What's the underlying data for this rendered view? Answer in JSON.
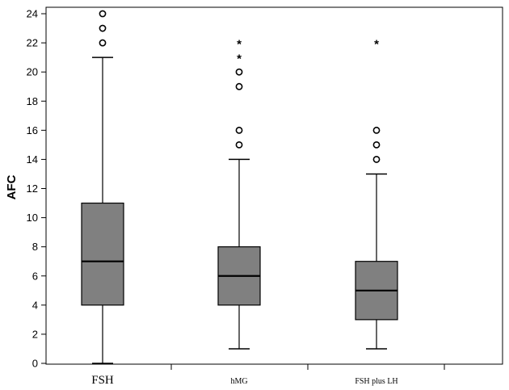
{
  "chart_data": {
    "type": "boxplot",
    "ylabel": "AFC",
    "xlabel": "",
    "ylim": [
      0,
      24
    ],
    "yticks": [
      0,
      2,
      4,
      6,
      8,
      10,
      12,
      14,
      16,
      18,
      20,
      22,
      24
    ],
    "grid": false,
    "box_color": "#808080",
    "categories": [
      "FSH",
      "hMG",
      "FSH plus LH"
    ],
    "boxes": [
      {
        "category": "FSH",
        "whisker_low": 0,
        "q1": 4,
        "median": 7,
        "q3": 11,
        "whisker_high": 21,
        "outliers": [
          22,
          23,
          24
        ],
        "extremes": []
      },
      {
        "category": "hMG",
        "whisker_low": 1,
        "q1": 4,
        "median": 6,
        "q3": 8,
        "whisker_high": 14,
        "outliers": [
          15,
          16,
          19,
          20
        ],
        "extremes": [
          21,
          22
        ]
      },
      {
        "category": "FSH plus LH",
        "whisker_low": 1,
        "q1": 3,
        "median": 5,
        "q3": 7,
        "whisker_high": 13,
        "outliers": [
          14,
          15,
          16
        ],
        "extremes": [
          22
        ]
      }
    ]
  }
}
